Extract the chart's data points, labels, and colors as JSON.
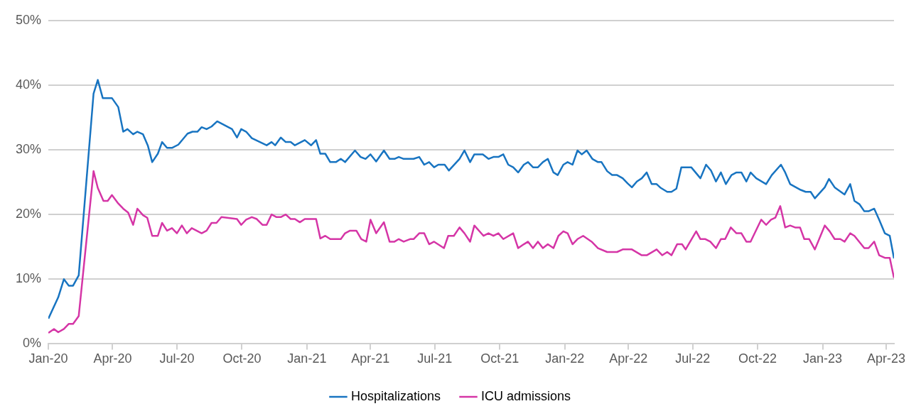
{
  "chart_data": {
    "type": "line",
    "xlim": [
      "2020-01-01",
      "2023-04-12"
    ],
    "xticks": [
      {
        "value": "2020-01-01",
        "label": "Jan-20"
      },
      {
        "value": "2020-04-01",
        "label": "Apr-20"
      },
      {
        "value": "2020-07-01",
        "label": "Jul-20"
      },
      {
        "value": "2020-10-01",
        "label": "Oct-20"
      },
      {
        "value": "2021-01-01",
        "label": "Jan-21"
      },
      {
        "value": "2021-04-01",
        "label": "Apr-21"
      },
      {
        "value": "2021-07-01",
        "label": "Jul-21"
      },
      {
        "value": "2021-10-01",
        "label": "Oct-21"
      },
      {
        "value": "2022-01-01",
        "label": "Jan-22"
      },
      {
        "value": "2022-04-01",
        "label": "Apr-22"
      },
      {
        "value": "2022-07-01",
        "label": "Jul-22"
      },
      {
        "value": "2022-10-01",
        "label": "Oct-22"
      },
      {
        "value": "2023-01-01",
        "label": "Jan-23"
      },
      {
        "value": "2023-04-01",
        "label": "Apr-23"
      }
    ],
    "ylim": [
      0,
      50
    ],
    "yticks": [
      {
        "value": 0,
        "label": "0%"
      },
      {
        "value": 10,
        "label": "10%"
      },
      {
        "value": 20,
        "label": "20%"
      },
      {
        "value": 30,
        "label": "30%"
      },
      {
        "value": 40,
        "label": "40%"
      },
      {
        "value": 50,
        "label": "50%"
      }
    ],
    "grid": "y",
    "legend": "bottom",
    "marker": "none",
    "line_style": "solid",
    "series": [
      {
        "name": "Hospitalizations",
        "color": "#1874c1",
        "x": [
          "2020-01-01",
          "2020-01-15",
          "2020-01-23",
          "2020-01-30",
          "2020-02-05",
          "2020-02-13",
          "2020-03-05",
          "2020-03-11",
          "2020-03-18",
          "2020-03-31",
          "2020-04-09",
          "2020-04-16",
          "2020-04-22",
          "2020-04-30",
          "2020-05-06",
          "2020-05-14",
          "2020-05-21",
          "2020-05-27",
          "2020-06-04",
          "2020-06-10",
          "2020-06-17",
          "2020-06-24",
          "2020-07-03",
          "2020-07-16",
          "2020-07-23",
          "2020-07-30",
          "2020-08-05",
          "2020-08-12",
          "2020-08-19",
          "2020-08-27",
          "2020-09-17",
          "2020-09-24",
          "2020-09-30",
          "2020-10-07",
          "2020-10-15",
          "2020-11-05",
          "2020-11-12",
          "2020-11-17",
          "2020-11-25",
          "2020-12-02",
          "2020-12-09",
          "2020-12-15",
          "2020-12-29",
          "2021-01-07",
          "2021-01-14",
          "2021-01-20",
          "2021-01-27",
          "2021-02-03",
          "2021-02-11",
          "2021-02-18",
          "2021-02-24",
          "2021-03-10",
          "2021-03-18",
          "2021-03-25",
          "2021-04-01",
          "2021-04-09",
          "2021-04-20",
          "2021-04-28",
          "2021-05-05",
          "2021-05-11",
          "2021-05-18",
          "2021-06-01",
          "2021-06-09",
          "2021-06-16",
          "2021-06-23",
          "2021-06-30",
          "2021-07-06",
          "2021-07-15",
          "2021-07-21",
          "2021-08-05",
          "2021-08-12",
          "2021-08-20",
          "2021-08-26",
          "2021-09-07",
          "2021-09-15",
          "2021-09-22",
          "2021-09-29",
          "2021-10-06",
          "2021-10-13",
          "2021-10-20",
          "2021-10-27",
          "2021-11-04",
          "2021-11-10",
          "2021-11-17",
          "2021-11-24",
          "2021-12-01",
          "2021-12-08",
          "2021-12-16",
          "2021-12-22",
          "2021-12-30",
          "2022-01-05",
          "2022-01-12",
          "2022-01-19",
          "2022-01-25",
          "2022-02-01",
          "2022-02-09",
          "2022-02-17",
          "2022-02-22",
          "2022-03-02",
          "2022-03-09",
          "2022-03-16",
          "2022-03-24",
          "2022-03-31",
          "2022-04-06",
          "2022-04-13",
          "2022-04-20",
          "2022-04-27",
          "2022-05-04",
          "2022-05-11",
          "2022-05-17",
          "2022-05-26",
          "2022-06-01",
          "2022-06-08",
          "2022-06-15",
          "2022-06-29",
          "2022-07-12",
          "2022-07-20",
          "2022-07-27",
          "2022-08-03",
          "2022-08-10",
          "2022-08-17",
          "2022-08-25",
          "2022-09-01",
          "2022-09-08",
          "2022-09-15",
          "2022-09-21",
          "2022-09-29",
          "2022-10-13",
          "2022-10-21",
          "2022-11-03",
          "2022-11-09",
          "2022-11-16",
          "2022-12-01",
          "2022-12-08",
          "2022-12-15",
          "2022-12-21",
          "2023-01-04",
          "2023-01-10",
          "2023-01-18",
          "2023-02-01",
          "2023-02-09",
          "2023-02-15",
          "2023-02-22",
          "2023-03-01",
          "2023-03-07",
          "2023-03-15",
          "2023-03-22",
          "2023-03-30",
          "2023-04-06",
          "2023-04-12"
        ],
        "values": [
          3.9,
          7.2,
          10.0,
          9.0,
          9.0,
          10.6,
          38.7,
          40.8,
          38.0,
          38.0,
          36.6,
          32.8,
          33.2,
          32.4,
          32.8,
          32.4,
          30.6,
          28.1,
          29.4,
          31.2,
          30.3,
          30.3,
          30.8,
          32.5,
          32.8,
          32.8,
          33.5,
          33.2,
          33.6,
          34.4,
          33.2,
          31.9,
          33.2,
          32.8,
          31.8,
          30.7,
          31.2,
          30.7,
          31.9,
          31.2,
          31.2,
          30.7,
          31.5,
          30.7,
          31.5,
          29.4,
          29.4,
          28.1,
          28.1,
          28.6,
          28.1,
          29.9,
          28.9,
          28.6,
          29.3,
          28.2,
          29.9,
          28.6,
          28.6,
          28.9,
          28.6,
          28.6,
          28.9,
          27.7,
          28.1,
          27.3,
          27.7,
          27.7,
          26.8,
          28.6,
          29.9,
          28.1,
          29.3,
          29.3,
          28.6,
          28.9,
          28.9,
          29.3,
          27.7,
          27.3,
          26.5,
          27.7,
          28.1,
          27.3,
          27.3,
          28.1,
          28.6,
          26.5,
          26.1,
          27.7,
          28.1,
          27.7,
          29.9,
          29.3,
          29.9,
          28.6,
          28.1,
          28.1,
          26.7,
          26.1,
          26.1,
          25.6,
          24.8,
          24.2,
          25.1,
          25.6,
          26.5,
          24.7,
          24.7,
          24.1,
          23.5,
          23.5,
          24.0,
          27.3,
          27.3,
          25.6,
          27.7,
          26.8,
          25.1,
          26.5,
          24.7,
          26.1,
          26.5,
          26.5,
          25.1,
          26.5,
          25.6,
          24.7,
          26.1,
          27.7,
          26.5,
          24.7,
          23.8,
          23.5,
          23.5,
          22.5,
          24.2,
          25.5,
          24.2,
          23.1,
          24.7,
          22.1,
          21.6,
          20.5,
          20.5,
          20.9,
          19.2,
          17.1,
          16.7,
          13.2
        ]
      },
      {
        "name": "ICU admissions",
        "color": "#d535a6",
        "x": [
          "2020-01-01",
          "2020-01-09",
          "2020-01-15",
          "2020-01-23",
          "2020-01-30",
          "2020-02-05",
          "2020-02-13",
          "2020-03-05",
          "2020-03-11",
          "2020-03-19",
          "2020-03-25",
          "2020-03-31",
          "2020-04-09",
          "2020-04-16",
          "2020-04-23",
          "2020-04-30",
          "2020-05-06",
          "2020-05-14",
          "2020-05-20",
          "2020-05-27",
          "2020-06-04",
          "2020-06-10",
          "2020-06-17",
          "2020-06-24",
          "2020-07-01",
          "2020-07-08",
          "2020-07-15",
          "2020-07-22",
          "2020-08-05",
          "2020-08-12",
          "2020-08-19",
          "2020-08-26",
          "2020-09-02",
          "2020-09-24",
          "2020-09-30",
          "2020-10-07",
          "2020-10-15",
          "2020-10-22",
          "2020-10-30",
          "2020-11-05",
          "2020-11-12",
          "2020-11-19",
          "2020-11-25",
          "2020-12-02",
          "2020-12-09",
          "2020-12-15",
          "2020-12-22",
          "2020-12-29",
          "2021-01-14",
          "2021-01-20",
          "2021-01-27",
          "2021-02-03",
          "2021-02-18",
          "2021-02-24",
          "2021-03-03",
          "2021-03-12",
          "2021-03-19",
          "2021-03-26",
          "2021-04-01",
          "2021-04-09",
          "2021-04-20",
          "2021-04-28",
          "2021-05-05",
          "2021-05-11",
          "2021-05-18",
          "2021-05-27",
          "2021-06-01",
          "2021-06-09",
          "2021-06-16",
          "2021-06-23",
          "2021-06-30",
          "2021-07-14",
          "2021-07-20",
          "2021-07-28",
          "2021-08-05",
          "2021-08-12",
          "2021-08-20",
          "2021-08-26",
          "2021-09-08",
          "2021-09-15",
          "2021-09-22",
          "2021-09-29",
          "2021-10-06",
          "2021-10-20",
          "2021-10-27",
          "2021-11-04",
          "2021-11-10",
          "2021-11-17",
          "2021-11-24",
          "2021-12-01",
          "2021-12-08",
          "2021-12-16",
          "2021-12-23",
          "2021-12-30",
          "2022-01-05",
          "2022-01-12",
          "2022-01-19",
          "2022-01-27",
          "2022-02-08",
          "2022-02-17",
          "2022-03-02",
          "2022-03-16",
          "2022-03-24",
          "2022-04-06",
          "2022-04-20",
          "2022-04-27",
          "2022-05-11",
          "2022-05-19",
          "2022-05-26",
          "2022-06-01",
          "2022-06-09",
          "2022-06-16",
          "2022-06-21",
          "2022-07-06",
          "2022-07-12",
          "2022-07-19",
          "2022-07-26",
          "2022-08-03",
          "2022-08-10",
          "2022-08-16",
          "2022-08-24",
          "2022-09-01",
          "2022-09-08",
          "2022-09-15",
          "2022-09-21",
          "2022-10-06",
          "2022-10-13",
          "2022-10-20",
          "2022-10-26",
          "2022-11-02",
          "2022-11-09",
          "2022-11-16",
          "2022-11-23",
          "2022-11-30",
          "2022-12-06",
          "2022-12-13",
          "2022-12-21",
          "2023-01-04",
          "2023-01-11",
          "2023-01-18",
          "2023-01-26",
          "2023-02-01",
          "2023-02-09",
          "2023-02-15",
          "2023-03-01",
          "2023-03-07",
          "2023-03-15",
          "2023-03-22",
          "2023-03-30",
          "2023-04-06",
          "2023-04-12"
        ],
        "values": [
          1.7,
          2.3,
          1.8,
          2.3,
          3.1,
          3.1,
          4.3,
          26.7,
          24.1,
          22.1,
          22.1,
          23.0,
          21.7,
          20.9,
          20.3,
          18.4,
          20.9,
          19.9,
          19.5,
          16.7,
          16.7,
          18.7,
          17.5,
          17.9,
          17.1,
          18.3,
          17.1,
          17.9,
          17.1,
          17.5,
          18.7,
          18.7,
          19.6,
          19.3,
          18.4,
          19.2,
          19.6,
          19.3,
          18.4,
          18.4,
          20.0,
          19.6,
          19.6,
          20.0,
          19.3,
          19.3,
          18.8,
          19.3,
          19.3,
          16.3,
          16.7,
          16.2,
          16.2,
          17.1,
          17.5,
          17.5,
          16.2,
          15.8,
          19.2,
          17.1,
          18.8,
          15.8,
          15.8,
          16.2,
          15.8,
          16.2,
          16.2,
          17.1,
          17.1,
          15.4,
          15.8,
          14.8,
          16.7,
          16.7,
          18.0,
          17.1,
          15.8,
          18.3,
          16.7,
          17.1,
          16.7,
          17.1,
          16.2,
          17.1,
          14.8,
          15.4,
          15.8,
          14.8,
          15.8,
          14.8,
          15.4,
          14.8,
          16.7,
          17.4,
          17.1,
          15.4,
          16.2,
          16.7,
          15.8,
          14.8,
          14.2,
          14.2,
          14.6,
          14.6,
          13.7,
          13.7,
          14.6,
          13.7,
          14.2,
          13.7,
          15.4,
          15.4,
          14.6,
          17.4,
          16.2,
          16.2,
          15.8,
          14.8,
          16.2,
          16.2,
          18.0,
          17.1,
          17.1,
          15.8,
          15.8,
          19.2,
          18.4,
          19.2,
          19.5,
          21.3,
          18.0,
          18.3,
          18.0,
          18.0,
          16.2,
          16.2,
          14.6,
          18.3,
          17.4,
          16.2,
          16.2,
          15.8,
          17.1,
          16.7,
          14.8,
          14.8,
          15.8,
          13.7,
          13.3,
          13.3,
          10.2
        ]
      }
    ]
  }
}
